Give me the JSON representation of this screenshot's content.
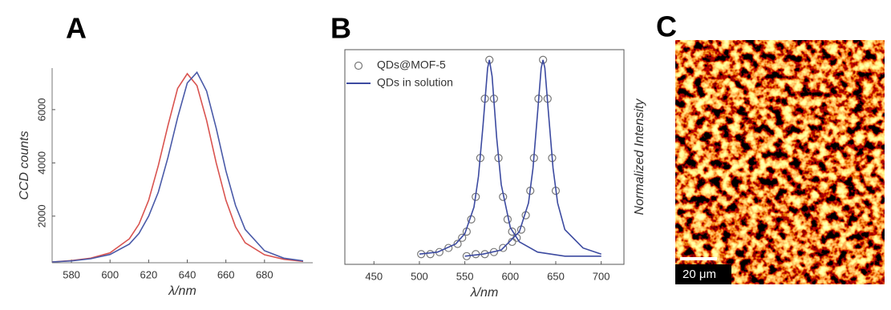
{
  "chart_data": [
    {
      "type": "line",
      "panel_label": "A",
      "x_label": "λ/nm",
      "y_label": "CCD counts",
      "xlim": [
        570,
        705
      ],
      "xticks": [
        580,
        600,
        620,
        640,
        660,
        680
      ],
      "ylim": [
        250,
        7560
      ],
      "yticks": [
        2000,
        4000,
        6000
      ],
      "series": [
        {
          "color": "#d9534f",
          "marker": "line",
          "x": [
            570,
            580,
            590,
            600,
            610,
            615,
            620,
            625,
            630,
            635,
            640,
            645,
            650,
            655,
            660,
            665,
            670,
            680,
            690,
            700
          ],
          "values": [
            280,
            330,
            420,
            620,
            1150,
            1700,
            2600,
            3900,
            5400,
            6800,
            7350,
            6900,
            5600,
            4000,
            2600,
            1600,
            1000,
            550,
            380,
            300
          ]
        },
        {
          "color": "#4a5aa8",
          "marker": "line",
          "x": [
            570,
            580,
            590,
            600,
            610,
            615,
            620,
            625,
            630,
            635,
            640,
            645,
            650,
            655,
            660,
            665,
            670,
            680,
            690,
            700
          ],
          "values": [
            280,
            320,
            400,
            560,
            950,
            1350,
            2000,
            2900,
            4200,
            5700,
            7000,
            7400,
            6700,
            5300,
            3700,
            2400,
            1500,
            700,
            420,
            320
          ]
        }
      ]
    },
    {
      "type": "line",
      "panel_label": "B",
      "x_label": "λ/nm",
      "y_label": "Normalized Intensity",
      "xlim": [
        418,
        725
      ],
      "xticks": [
        450,
        500,
        550,
        600,
        650,
        700
      ],
      "ylim": [
        0,
        1.05
      ],
      "legend": [
        {
          "name": "QDs@MOF-5",
          "marker": "circle",
          "color": "#777777"
        },
        {
          "name": "QDs in solution",
          "marker": "line",
          "color": "#3c4aa0"
        }
      ],
      "series": [
        {
          "color": "#777777",
          "marker": "circle",
          "x": [
            502,
            512,
            522,
            532,
            542,
            547,
            552,
            557,
            562,
            567,
            572,
            577,
            582,
            587,
            592,
            597,
            602,
            607
          ],
          "values": [
            0.05,
            0.05,
            0.06,
            0.08,
            0.1,
            0.13,
            0.16,
            0.22,
            0.33,
            0.52,
            0.81,
            1,
            0.81,
            0.52,
            0.33,
            0.22,
            0.16,
            0.13
          ]
        },
        {
          "color": "#777777",
          "marker": "circle",
          "x": [
            552,
            562,
            572,
            582,
            592,
            602,
            612,
            617,
            622,
            626,
            631,
            636,
            641,
            646,
            650
          ],
          "values": [
            0.04,
            0.05,
            0.05,
            0.06,
            0.08,
            0.11,
            0.17,
            0.24,
            0.36,
            0.52,
            0.81,
            1,
            0.81,
            0.52,
            0.36
          ]
        },
        {
          "color": "#3c4aa0",
          "marker": "line",
          "x": [
            500,
            520,
            540,
            550,
            560,
            565,
            570,
            575,
            577,
            580,
            585,
            590,
            600,
            610,
            630,
            660,
            700
          ],
          "values": [
            0.05,
            0.06,
            0.1,
            0.15,
            0.28,
            0.43,
            0.68,
            0.96,
            1,
            0.92,
            0.62,
            0.39,
            0.18,
            0.11,
            0.06,
            0.04,
            0.04
          ]
        },
        {
          "color": "#3c4aa0",
          "marker": "line",
          "x": [
            550,
            570,
            590,
            610,
            620,
            625,
            630,
            634,
            636,
            638,
            642,
            647,
            652,
            660,
            680,
            700
          ],
          "values": [
            0.04,
            0.05,
            0.07,
            0.16,
            0.3,
            0.47,
            0.74,
            0.96,
            1,
            0.96,
            0.74,
            0.47,
            0.3,
            0.17,
            0.08,
            0.05
          ]
        }
      ]
    }
  ],
  "image_panel": {
    "panel_label": "C",
    "scale_bar": "20 μm"
  }
}
